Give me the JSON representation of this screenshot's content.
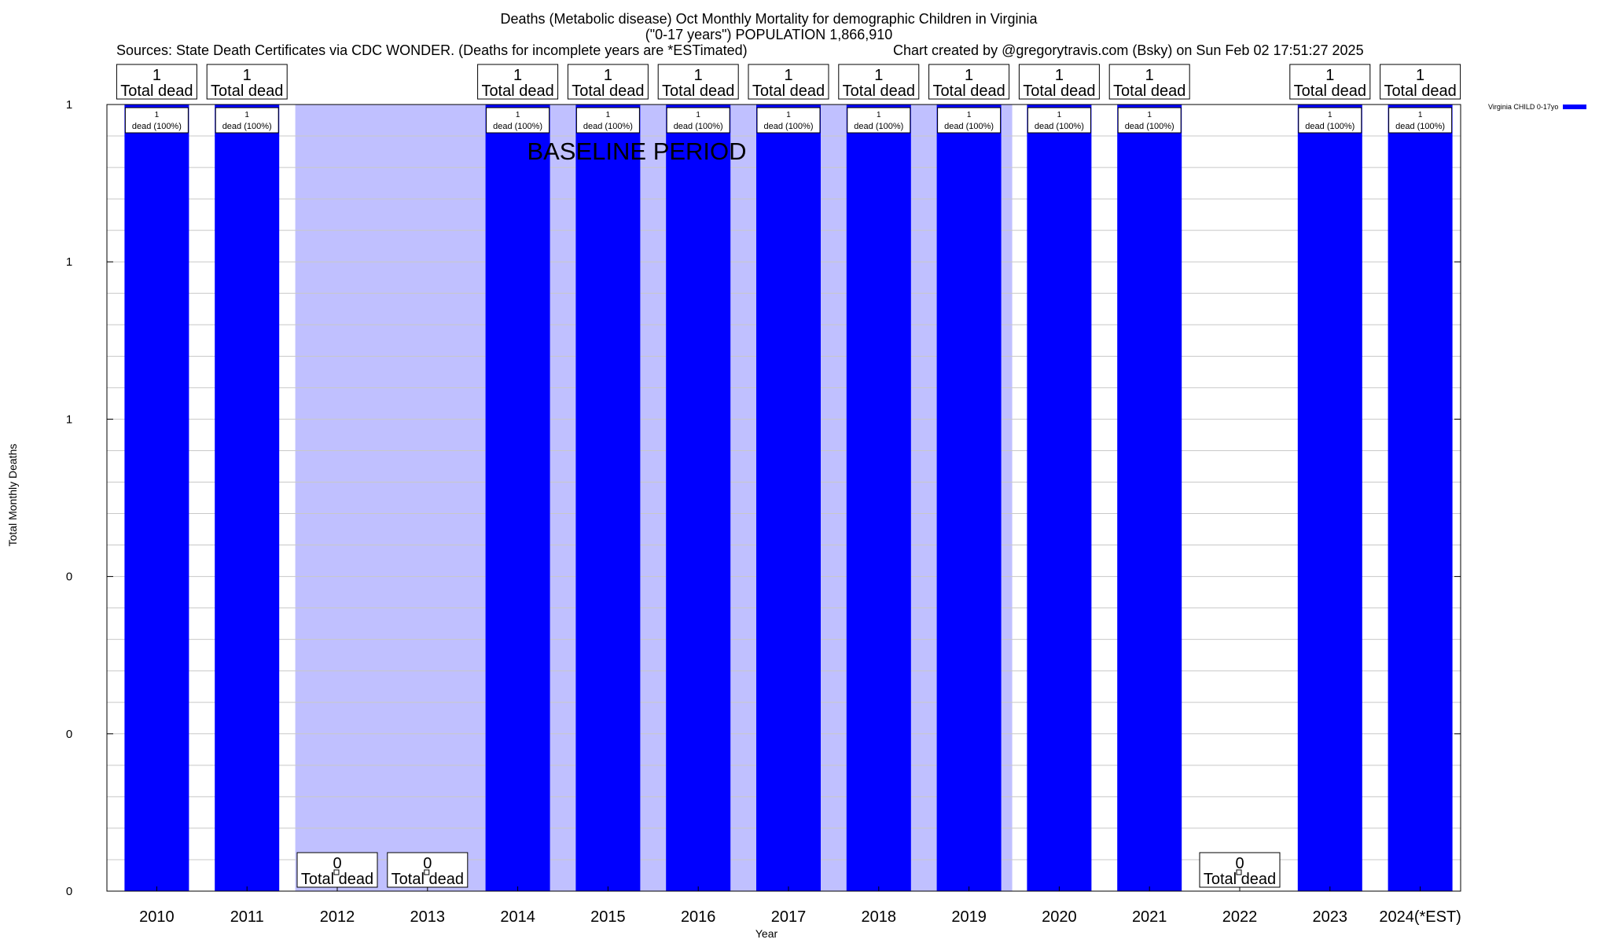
{
  "titles": {
    "line1": "Deaths (Metabolic disease) Oct Monthly Mortality for demographic Children in Virginia",
    "line2": "(\"0-17 years\") POPULATION 1,866,910",
    "sources": "Sources: State Death Certificates via CDC WONDER. (Deaths for incomplete years are *ESTimated)",
    "credit": "Chart created by @gregorytravis.com (Bsky) on Sun Feb 02 17:51:27 2025"
  },
  "chart_data": {
    "type": "bar",
    "xlabel": "Year",
    "ylabel": "Total Monthly Deaths",
    "ylim": [
      0,
      1
    ],
    "y_ticks": [
      {
        "value": 0,
        "label": "0"
      },
      {
        "value": 0.2,
        "label": "0"
      },
      {
        "value": 0.4,
        "label": "0"
      },
      {
        "value": 0.6,
        "label": "1"
      },
      {
        "value": 0.8,
        "label": "1"
      },
      {
        "value": 1.0,
        "label": "1"
      }
    ],
    "grid": true,
    "legend_position": "top-right",
    "categories": [
      "2010",
      "2011",
      "2012",
      "2013",
      "2014",
      "2015",
      "2016",
      "2017",
      "2018",
      "2019",
      "2020",
      "2021",
      "2022",
      "2023",
      "2024(*EST)"
    ],
    "series": [
      {
        "name": "Virginia CHILD 0-17yo",
        "color": "#0000ff",
        "values": [
          1,
          1,
          0,
          0,
          1,
          1,
          1,
          1,
          1,
          1,
          1,
          1,
          0,
          1,
          1
        ]
      }
    ],
    "total_labels": [
      "1",
      "1",
      "0",
      "0",
      "1",
      "1",
      "1",
      "1",
      "1",
      "1",
      "1",
      "1",
      "0",
      "1",
      "1"
    ],
    "total_caption": "Total dead",
    "inner_label": "dead (100%)",
    "baseline": {
      "label": "BASELINE PERIOD",
      "from": "2012",
      "to": "2019",
      "color": "#c0c0ff"
    }
  }
}
